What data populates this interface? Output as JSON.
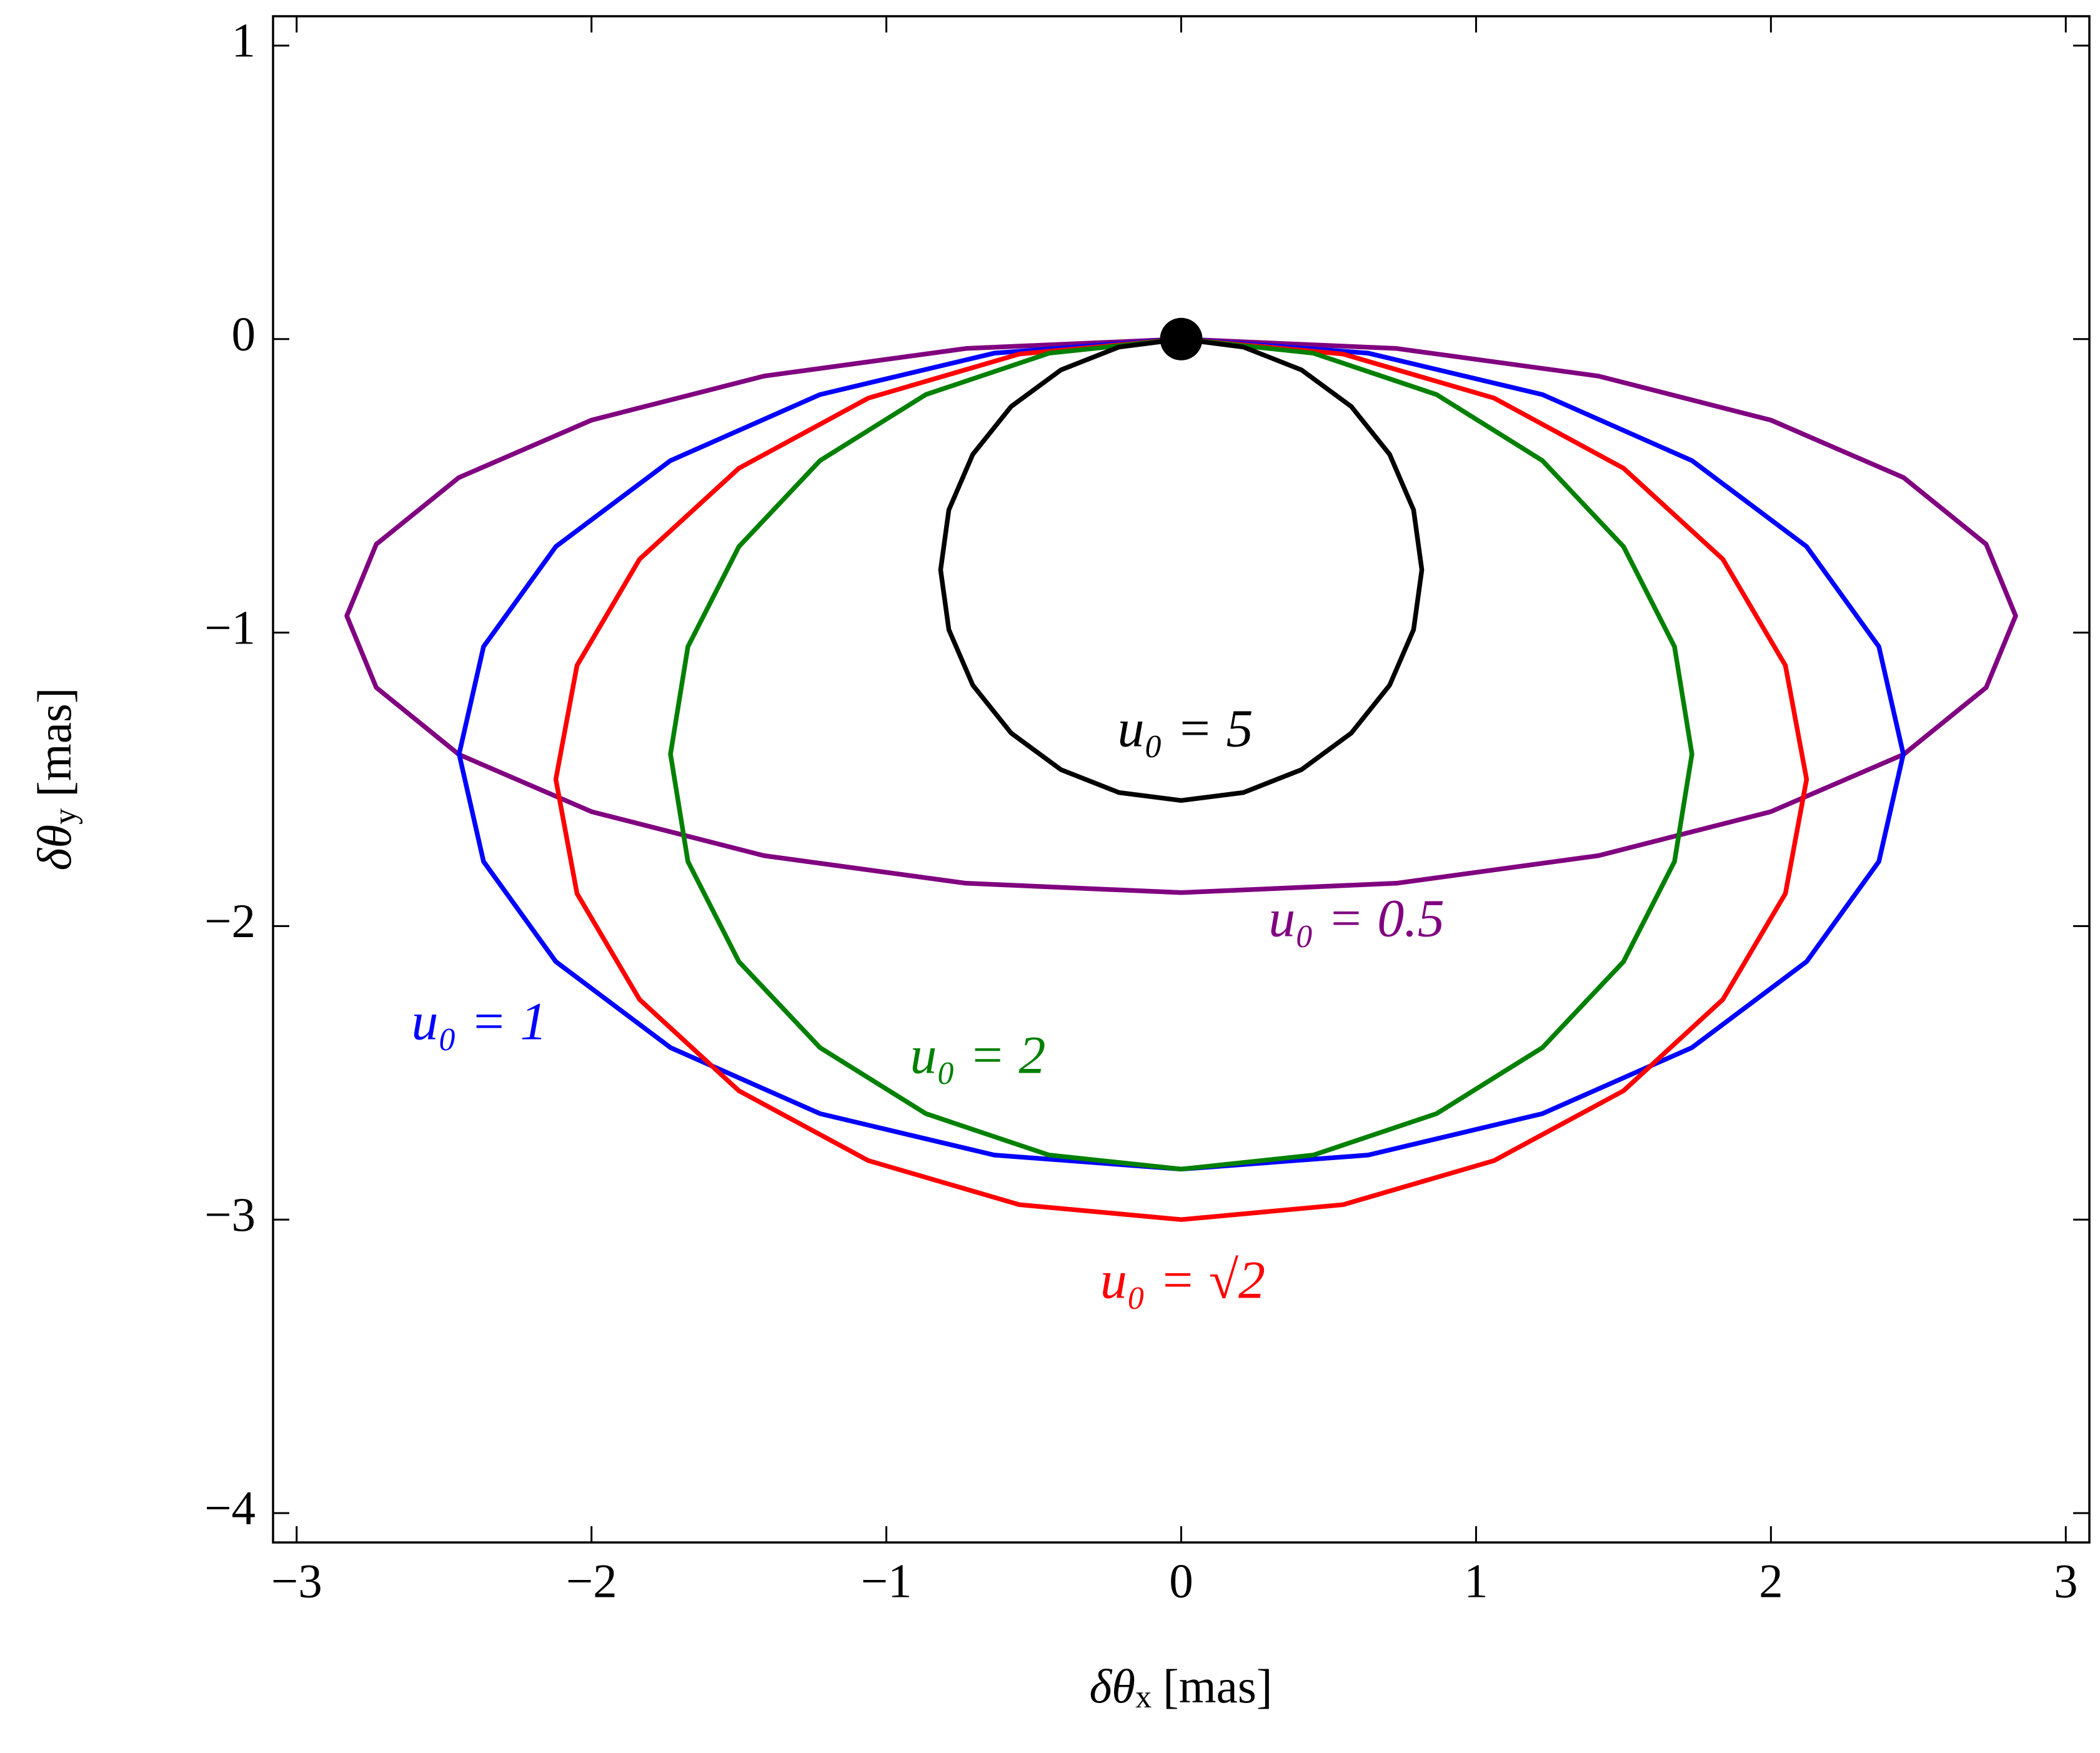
{
  "chart_data": {
    "type": "line",
    "xlabel": {
      "symbol": "δθ",
      "sub": "x",
      "unit": "[mas]"
    },
    "ylabel": {
      "symbol": "δθ",
      "sub": "y",
      "unit": "[mas]"
    },
    "xlim": [
      -3.08,
      3.08
    ],
    "ylim": [
      -4.1,
      1.1
    ],
    "xticks": [
      {
        "value": -3,
        "label": "−3"
      },
      {
        "value": -2,
        "label": "−2"
      },
      {
        "value": -1,
        "label": "−1"
      },
      0,
      1,
      2,
      3
    ],
    "yticks": [
      {
        "value": -4,
        "label": "−4"
      },
      {
        "value": -3,
        "label": "−3"
      },
      {
        "value": -2,
        "label": "−2"
      },
      {
        "value": -1,
        "label": "−1"
      },
      0,
      1
    ],
    "source": {
      "x": 0,
      "y": 0,
      "color": "#000000"
    },
    "series": [
      {
        "name": "u₀ = 0.5",
        "color": "#800080",
        "x": [
          0,
          0.73,
          1.415,
          2.0,
          2.45,
          2.73,
          2.83,
          2.73,
          2.45,
          2.0,
          1.415,
          0.73,
          0,
          -0.73,
          -1.415,
          -2.0,
          -2.45,
          -2.73,
          -2.83,
          -2.73,
          -2.45,
          -2.0,
          -1.415,
          -0.73,
          0
        ],
        "values": [
          0,
          -0.032,
          -0.126,
          -0.276,
          -0.472,
          -0.699,
          -0.943,
          -1.187,
          -1.415,
          -1.61,
          -1.76,
          -1.854,
          -1.886,
          -1.854,
          -1.76,
          -1.61,
          -1.415,
          -1.187,
          -0.943,
          -0.699,
          -0.472,
          -0.276,
          -0.126,
          -0.032,
          0
        ]
      },
      {
        "name": "u₀ = 1",
        "color": "#0000ff",
        "x": [
          0,
          0.634,
          1.225,
          1.732,
          2.121,
          2.366,
          2.449,
          2.366,
          2.121,
          1.732,
          1.225,
          0.634,
          0,
          -0.634,
          -1.225,
          -1.732,
          -2.121,
          -2.366,
          -2.449,
          -2.366,
          -2.121,
          -1.732,
          -1.225,
          -0.634,
          0
        ],
        "values": [
          0,
          -0.048,
          -0.189,
          -0.414,
          -0.707,
          -1.048,
          -1.414,
          -1.78,
          -2.121,
          -2.414,
          -2.639,
          -2.78,
          -2.828,
          -2.78,
          -2.639,
          -2.414,
          -2.121,
          -1.78,
          -1.414,
          -1.048,
          -0.707,
          -0.414,
          -0.189,
          -0.048,
          0
        ]
      },
      {
        "name": "u₀ = √2",
        "color": "#ff0000",
        "x": [
          0,
          0.549,
          1.061,
          1.5,
          1.837,
          2.049,
          2.121,
          2.049,
          1.837,
          1.5,
          1.061,
          0.549,
          0,
          -0.549,
          -1.061,
          -1.5,
          -1.837,
          -2.049,
          -2.121,
          -2.049,
          -1.837,
          -1.5,
          -1.061,
          -0.549,
          0
        ],
        "values": [
          0,
          -0.051,
          -0.201,
          -0.44,
          -0.75,
          -1.112,
          -1.5,
          -1.889,
          -2.25,
          -2.561,
          -2.799,
          -2.949,
          -3.0,
          -2.949,
          -2.799,
          -2.561,
          -2.25,
          -1.889,
          -1.5,
          -1.112,
          -0.75,
          -0.44,
          -0.201,
          -0.051,
          0
        ]
      },
      {
        "name": "u₀ = 2",
        "color": "#008000",
        "x": [
          0,
          0.448,
          0.866,
          1.225,
          1.5,
          1.673,
          1.732,
          1.673,
          1.5,
          1.225,
          0.866,
          0.448,
          0,
          -0.448,
          -0.866,
          -1.225,
          -1.5,
          -1.673,
          -1.732,
          -1.673,
          -1.5,
          -1.225,
          -0.866,
          -0.448,
          0
        ],
        "values": [
          0,
          -0.048,
          -0.189,
          -0.414,
          -0.707,
          -1.048,
          -1.414,
          -1.78,
          -2.121,
          -2.414,
          -2.639,
          -2.78,
          -2.828,
          -2.78,
          -2.639,
          -2.414,
          -2.121,
          -1.78,
          -1.414,
          -1.048,
          -0.707,
          -0.414,
          -0.189,
          -0.048,
          0
        ]
      },
      {
        "name": "u₀ = 5",
        "color": "#000000",
        "x": [
          0,
          0.211,
          0.408,
          0.577,
          0.707,
          0.788,
          0.816,
          0.788,
          0.707,
          0.577,
          0.408,
          0.211,
          0,
          -0.211,
          -0.408,
          -0.577,
          -0.707,
          -0.788,
          -0.816,
          -0.788,
          -0.707,
          -0.577,
          -0.408,
          -0.211,
          0
        ],
        "values": [
          0,
          -0.027,
          -0.105,
          -0.23,
          -0.393,
          -0.582,
          -0.786,
          -0.99,
          -1.179,
          -1.342,
          -1.467,
          -1.545,
          -1.572,
          -1.545,
          -1.467,
          -1.342,
          -1.179,
          -0.99,
          -0.786,
          -0.582,
          -0.393,
          -0.23,
          -0.105,
          -0.027,
          0
        ]
      }
    ]
  }
}
